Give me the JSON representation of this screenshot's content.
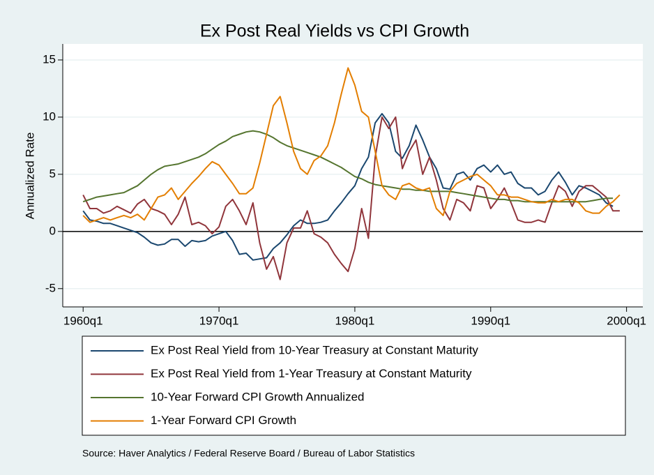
{
  "chart_data": {
    "type": "line",
    "title": "Ex Post Real Yields vs CPI Growth",
    "ylabel": "Annualized Rate",
    "note": "Source:  Haver Analytics / Federal Reserve Board / Bureau of Labor Statistics",
    "xlim": [
      1958.5,
      2001.2
    ],
    "ylim": [
      -6.6,
      16.4
    ],
    "xticks": [
      {
        "value": 1960,
        "label": "1960q1"
      },
      {
        "value": 1970,
        "label": "1970q1"
      },
      {
        "value": 1980,
        "label": "1980q1"
      },
      {
        "value": 1990,
        "label": "1990q1"
      },
      {
        "value": 2000,
        "label": "2000q1"
      }
    ],
    "yticks": [
      {
        "value": -5,
        "label": "-5"
      },
      0,
      5,
      10,
      15
    ],
    "yline": 0,
    "grid": true,
    "x": [
      1960,
      1960.5,
      1961,
      1961.5,
      1962,
      1962.5,
      1963,
      1963.5,
      1964,
      1964.5,
      1965,
      1965.5,
      1966,
      1966.5,
      1967,
      1967.5,
      1968,
      1968.5,
      1969,
      1969.5,
      1970,
      1970.5,
      1971,
      1971.5,
      1972,
      1972.5,
      1973,
      1973.5,
      1974,
      1974.5,
      1975,
      1975.5,
      1976,
      1976.5,
      1977,
      1977.5,
      1978,
      1978.5,
      1979,
      1979.5,
      1980,
      1980.5,
      1981,
      1981.5,
      1982,
      1982.5,
      1983,
      1983.5,
      1984,
      1984.5,
      1985,
      1985.5,
      1986,
      1986.5,
      1987,
      1987.5,
      1988,
      1988.5,
      1989,
      1989.5,
      1990,
      1990.5,
      1991,
      1991.5,
      1992,
      1992.5,
      1993,
      1993.5,
      1994,
      1994.5,
      1995,
      1995.5,
      1996,
      1996.5,
      1997,
      1997.5,
      1998,
      1998.5,
      1999,
      1999.5
    ],
    "series": [
      {
        "name": "Ex Post Real Yield from 10-Year Treasury at Constant Maturity",
        "color": "#1a476f",
        "values": [
          1.8,
          1.0,
          0.9,
          0.7,
          0.7,
          0.5,
          0.3,
          0.1,
          -0.1,
          -0.5,
          -1.0,
          -1.2,
          -1.1,
          -0.7,
          -0.7,
          -1.3,
          -0.8,
          -0.9,
          -0.8,
          -0.4,
          -0.2,
          0.0,
          -0.8,
          -2.0,
          -1.9,
          -2.5,
          -2.4,
          -2.3,
          -1.5,
          -1.0,
          -0.3,
          0.5,
          1.0,
          0.7,
          0.7,
          0.8,
          1.0,
          1.8,
          2.5,
          3.3,
          4.0,
          5.5,
          6.5,
          9.5,
          10.3,
          9.5,
          7.0,
          6.4,
          7.5,
          9.3,
          8.0,
          6.5,
          5.5,
          3.8,
          3.7,
          5.0,
          5.2,
          4.5,
          5.5,
          5.8,
          5.2,
          5.8,
          5.0,
          5.2,
          4.2,
          3.8,
          3.8,
          3.2,
          3.5,
          4.5,
          5.2,
          4.3,
          3.2,
          4.0,
          3.8,
          3.5,
          3.2,
          2.5,
          2.2,
          null
        ]
      },
      {
        "name": "Ex Post Real Yield from 1-Year Treasury at Constant Maturity",
        "color": "#90353b",
        "values": [
          3.2,
          2.0,
          2.0,
          1.6,
          1.8,
          2.2,
          1.9,
          1.6,
          2.4,
          2.8,
          2.0,
          1.8,
          1.5,
          0.6,
          1.5,
          3.0,
          0.6,
          0.8,
          0.5,
          -0.2,
          0.4,
          2.2,
          2.8,
          1.8,
          0.6,
          2.5,
          -1.0,
          -3.3,
          -2.2,
          -4.2,
          -1.0,
          0.3,
          0.3,
          1.8,
          -0.2,
          -0.5,
          -1.0,
          -2.0,
          -2.8,
          -3.5,
          -1.5,
          2.0,
          -0.6,
          6.5,
          10.0,
          9.0,
          10.0,
          5.5,
          7.0,
          8.0,
          5.0,
          6.5,
          4.5,
          2.0,
          1.0,
          2.8,
          2.5,
          1.8,
          4.0,
          3.8,
          2.0,
          2.8,
          3.8,
          2.5,
          1.0,
          0.8,
          0.8,
          1.0,
          0.8,
          2.5,
          4.0,
          3.5,
          2.2,
          3.5,
          4.0,
          4.0,
          3.5,
          3.0,
          1.8,
          1.8
        ]
      },
      {
        "name": "10-Year Forward CPI Growth Annualized",
        "color": "#55752f",
        "values": [
          2.6,
          2.8,
          3.0,
          3.1,
          3.2,
          3.3,
          3.4,
          3.7,
          4.0,
          4.5,
          5.0,
          5.4,
          5.7,
          5.8,
          5.9,
          6.1,
          6.3,
          6.5,
          6.8,
          7.2,
          7.6,
          7.9,
          8.3,
          8.5,
          8.7,
          8.8,
          8.7,
          8.5,
          8.2,
          7.8,
          7.5,
          7.3,
          7.1,
          6.9,
          6.7,
          6.5,
          6.2,
          5.9,
          5.6,
          5.2,
          4.8,
          4.6,
          4.3,
          4.1,
          4.0,
          3.9,
          3.8,
          3.7,
          3.7,
          3.6,
          3.6,
          3.5,
          3.5,
          3.5,
          3.5,
          3.4,
          3.3,
          3.2,
          3.1,
          3.0,
          2.9,
          2.8,
          2.8,
          2.7,
          2.7,
          2.6,
          2.6,
          2.6,
          2.6,
          2.6,
          2.6,
          2.6,
          2.6,
          2.6,
          2.6,
          2.7,
          2.8,
          2.9,
          2.9,
          null
        ]
      },
      {
        "name": "1-Year Forward CPI Growth",
        "color": "#e37e00",
        "values": [
          1.4,
          0.8,
          1.0,
          1.2,
          1.0,
          1.2,
          1.4,
          1.2,
          1.5,
          1.0,
          2.0,
          3.0,
          3.2,
          3.8,
          2.8,
          3.5,
          4.2,
          4.8,
          5.5,
          6.1,
          5.8,
          5.0,
          4.2,
          3.3,
          3.3,
          3.8,
          6.0,
          8.5,
          11.0,
          11.8,
          9.5,
          7.0,
          5.5,
          5.0,
          6.2,
          6.6,
          7.5,
          9.5,
          12.0,
          14.3,
          12.8,
          10.5,
          10.0,
          7.0,
          4.0,
          3.2,
          2.8,
          4.0,
          4.2,
          3.8,
          3.6,
          3.8,
          2.0,
          1.4,
          3.5,
          4.2,
          4.5,
          4.8,
          5.0,
          4.5,
          4.0,
          3.2,
          3.2,
          3.0,
          3.0,
          2.8,
          2.6,
          2.5,
          2.5,
          2.8,
          2.6,
          2.8,
          2.8,
          2.5,
          1.8,
          1.6,
          1.6,
          2.2,
          2.6,
          3.2
        ]
      }
    ]
  }
}
